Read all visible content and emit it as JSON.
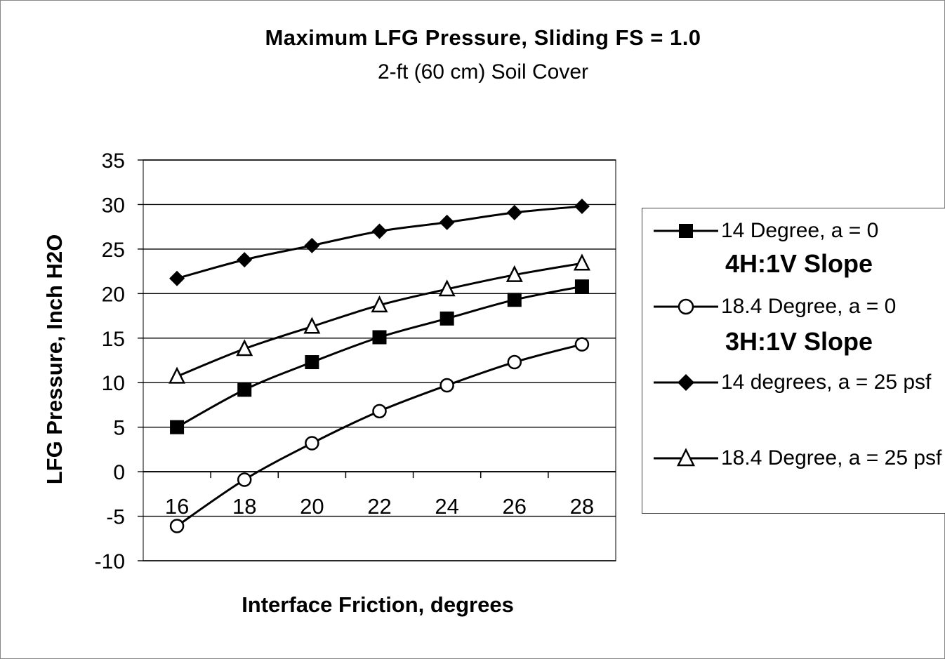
{
  "chart_data": {
    "type": "line",
    "title": "Maximum LFG Pressure, Sliding FS = 1.0",
    "subtitle": "2-ft (60 cm) Soil Cover",
    "xlabel": "Interface Friction, degrees",
    "ylabel": "LFG Pressure, Inch H2O",
    "x": [
      16,
      18,
      20,
      22,
      24,
      26,
      28
    ],
    "xticks": [
      "16",
      "18",
      "20",
      "22",
      "24",
      "26",
      "28"
    ],
    "yticks": [
      "35",
      "30",
      "25",
      "20",
      "15",
      "10",
      "5",
      "0",
      "-5",
      "-10"
    ],
    "ylim": [
      -10,
      35
    ],
    "grid": "horizontal",
    "legend_position": "right",
    "series": [
      {
        "name": "14 Degree, a = 0",
        "marker": "square-filled",
        "values": [
          5.0,
          9.2,
          12.3,
          15.1,
          17.2,
          19.3,
          20.8
        ]
      },
      {
        "name": "18.4 Degree, a = 0",
        "marker": "circle-open",
        "values": [
          -6.1,
          -0.9,
          3.2,
          6.8,
          9.7,
          12.3,
          14.3
        ]
      },
      {
        "name": "14 degrees, a = 25 psf",
        "marker": "diamond-filled",
        "values": [
          21.7,
          23.8,
          25.4,
          27.0,
          28.0,
          29.1,
          29.8
        ]
      },
      {
        "name": "18.4 Degree, a = 25 psf",
        "marker": "triangle-open",
        "values": [
          10.7,
          13.8,
          16.3,
          18.7,
          20.5,
          22.1,
          23.4
        ]
      }
    ]
  },
  "legend": {
    "header_4h": "4H:1V Slope",
    "header_3h": "3H:1V Slope"
  },
  "colors": {
    "line": "#000000",
    "grid": "#000000",
    "background": "#ffffff"
  }
}
